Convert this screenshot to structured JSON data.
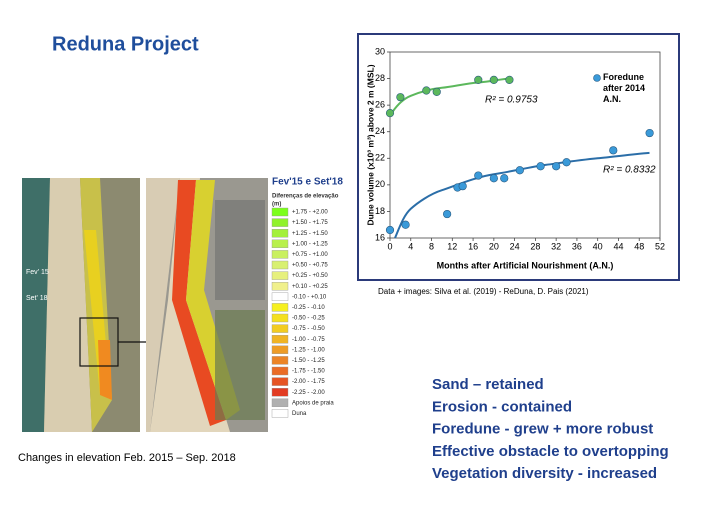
{
  "title": "Reduna Project",
  "map": {
    "labels": [
      "Fev' 15",
      "Set' 18"
    ],
    "legend_title": "Fev'15 e Set'18",
    "legend_subtitle": "Diferenças de elevação",
    "legend_unit": "(m)",
    "legend": [
      {
        "label": "+1.75 - +2.00",
        "color": "#7cff1a"
      },
      {
        "label": "+1.50 - +1.75",
        "color": "#8ff22a"
      },
      {
        "label": "+1.25 - +1.50",
        "color": "#a3f03a"
      },
      {
        "label": "+1.00 - +1.25",
        "color": "#b8f04c"
      },
      {
        "label": "+0.75 - +1.00",
        "color": "#c9f060"
      },
      {
        "label": "+0.50 - +0.75",
        "color": "#d8f070"
      },
      {
        "label": "+0.25 - +0.50",
        "color": "#e6f07e"
      },
      {
        "label": "+0.10 - +0.25",
        "color": "#f0f08c"
      },
      {
        "label": "-0.10 - +0.10",
        "color": "#ffffff"
      },
      {
        "label": "-0.25 - -0.10",
        "color": "#f6f020"
      },
      {
        "label": "-0.50 - -0.25",
        "color": "#f4e020"
      },
      {
        "label": "-0.75 - -0.50",
        "color": "#f2cc22"
      },
      {
        "label": "-1.00 - -0.75",
        "color": "#f0b424"
      },
      {
        "label": "-1.25 - -1.00",
        "color": "#ee9c26"
      },
      {
        "label": "-1.50 - -1.25",
        "color": "#ec8426"
      },
      {
        "label": "-1.75 - -1.50",
        "color": "#ea6c26"
      },
      {
        "label": "-2.00 - -1.75",
        "color": "#e65424"
      },
      {
        "label": "-2.25 - -2.00",
        "color": "#e23c22"
      },
      {
        "label": "Apoios de praia",
        "color": "#b0b0b0"
      },
      {
        "label": "Duna",
        "color": "#ffffff"
      }
    ],
    "caption": "Changes in elevation Feb. 2015 – Sep. 2018"
  },
  "chart_data": {
    "type": "scatter",
    "xlabel": "Months after Artificial Nourishment (A.N.)",
    "ylabel": "Dune volume (x10³ m³) above 2 m (MSL)",
    "xlim": [
      0,
      52
    ],
    "xticks": [
      0,
      4,
      8,
      12,
      16,
      20,
      24,
      28,
      32,
      36,
      40,
      44,
      48,
      52
    ],
    "ylim": [
      16,
      30
    ],
    "yticks": [
      16,
      18,
      20,
      22,
      24,
      26,
      28,
      30
    ],
    "series": [
      {
        "color": "#5cb85c",
        "x": [
          0,
          2,
          7,
          9,
          17,
          20,
          23
        ],
        "values": [
          25.4,
          26.6,
          27.1,
          27.0,
          27.9,
          27.9,
          27.9
        ]
      },
      {
        "name": "Foredune after 2014 A.N.",
        "color": "#3a9ad9",
        "x": [
          0,
          3,
          11,
          13,
          14,
          17,
          20,
          22,
          25,
          29,
          32,
          34,
          43,
          50
        ],
        "values": [
          16.6,
          17.0,
          17.8,
          19.8,
          19.9,
          20.7,
          20.5,
          20.5,
          21.1,
          21.4,
          21.4,
          21.7,
          22.6,
          23.9
        ]
      }
    ],
    "annotations": [
      "R² = 0.9753",
      "R² = 0.8332"
    ],
    "source": "Data + images: Silva et al. (2019) - ReDuna, D. Pais (2021)"
  },
  "bullets": [
    "Sand – retained",
    "Erosion - contained",
    "Foredune -  grew + more robust",
    "Effective obstacle to overtopping",
    "Vegetation diversity -  increased"
  ]
}
